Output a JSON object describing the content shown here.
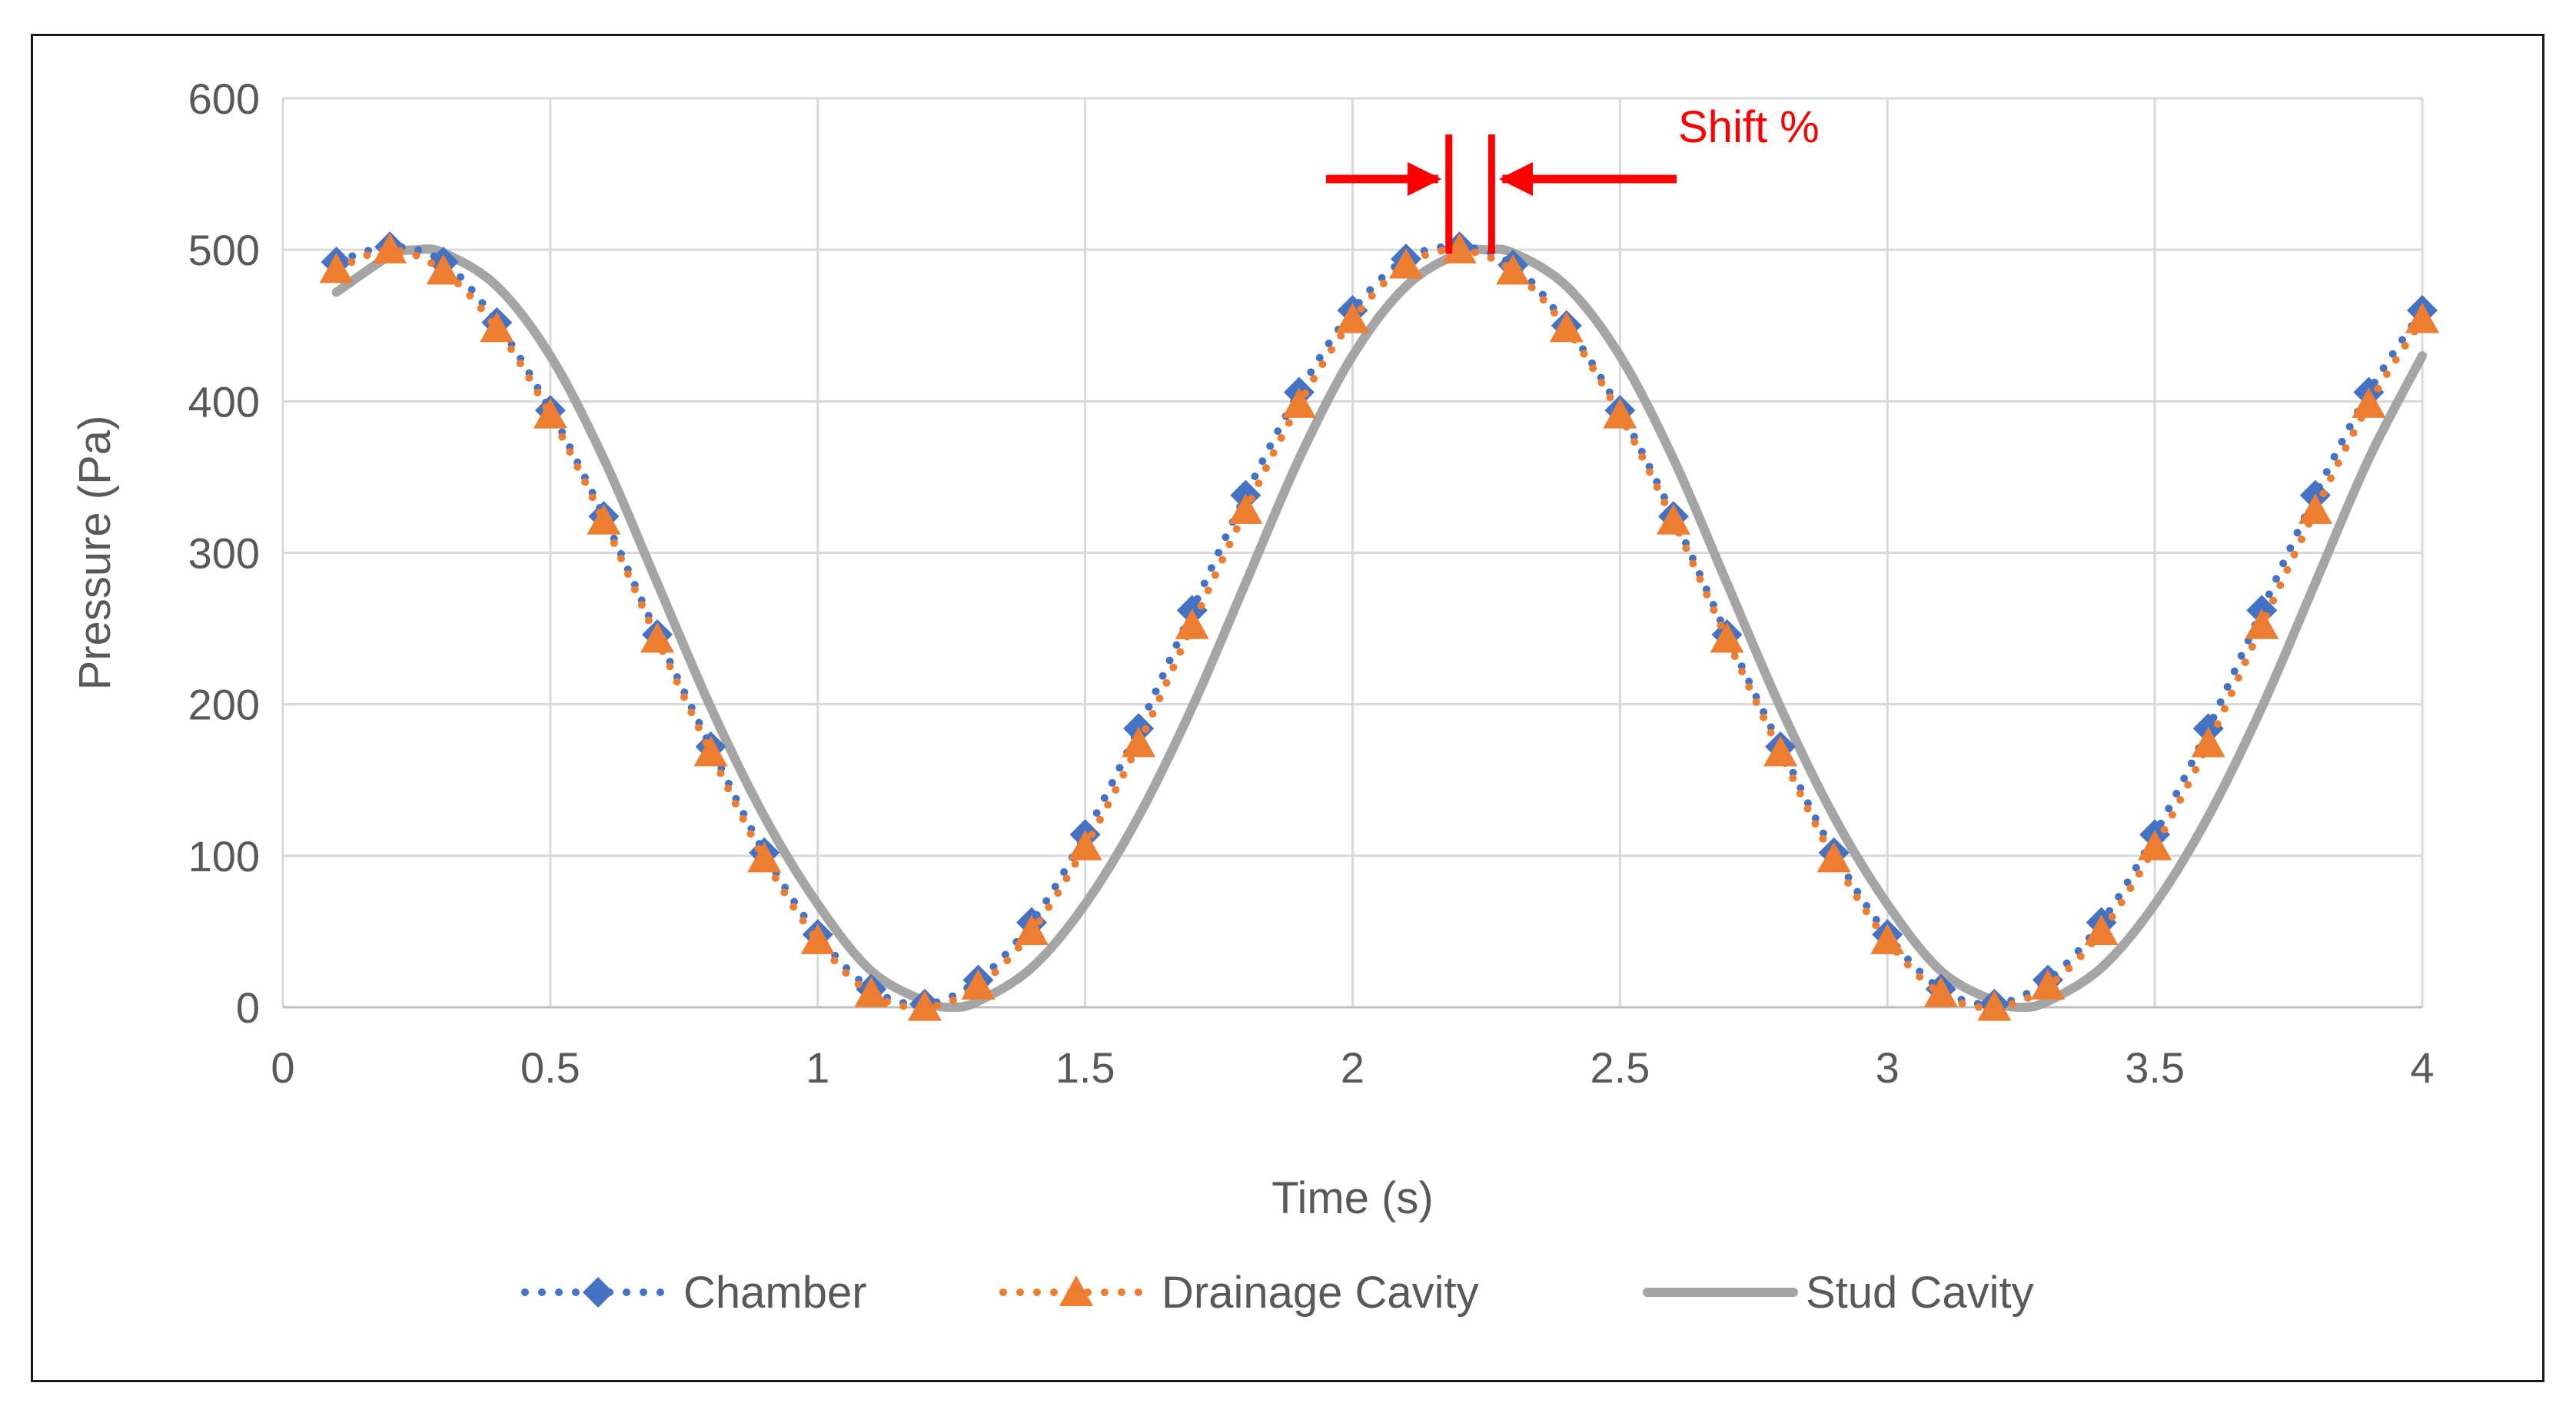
{
  "chart_data": {
    "type": "line",
    "title": "",
    "xlabel": "Time (s)",
    "ylabel": "Pressure (Pa)",
    "xlim": [
      0,
      4
    ],
    "ylim": [
      0,
      600
    ],
    "x_ticks": [
      0,
      0.5,
      1,
      1.5,
      2,
      2.5,
      3,
      3.5,
      4
    ],
    "x_tick_labels": [
      "0",
      "0.5",
      "1",
      "1.5",
      "2",
      "2.5",
      "3",
      "3.5",
      "4"
    ],
    "y_ticks": [
      0,
      100,
      200,
      300,
      400,
      500,
      600
    ],
    "y_tick_labels": [
      "0",
      "100",
      "200",
      "300",
      "400",
      "500",
      "600"
    ],
    "grid": true,
    "legend_position": "bottom",
    "series": [
      {
        "name": "Chamber",
        "color": "#4472C4",
        "line_style": "dotted",
        "marker": "diamond",
        "x": [
          0.1,
          0.2,
          0.3,
          0.4,
          0.5,
          0.6,
          0.7,
          0.8,
          0.9,
          1.0,
          1.1,
          1.2,
          1.3,
          1.4,
          1.5,
          1.6,
          1.7,
          1.8,
          1.9,
          2.0,
          2.1,
          2.2,
          2.3,
          2.4,
          2.5,
          2.6,
          2.7,
          2.8,
          2.9,
          3.0,
          3.1,
          3.2,
          3.3,
          3.4,
          3.5,
          3.6,
          3.7,
          3.8,
          3.9,
          4.0
        ],
        "values": [
          492,
          502,
          492,
          452,
          394,
          324,
          246,
          172,
          102,
          48,
          12,
          2,
          18,
          56,
          114,
          184,
          262,
          338,
          406,
          460,
          494,
          502,
          490,
          450,
          394,
          324,
          246,
          172,
          102,
          48,
          12,
          2,
          18,
          56,
          114,
          184,
          262,
          338,
          406,
          460
        ]
      },
      {
        "name": "Drainage Cavity",
        "color": "#ED7D31",
        "line_style": "dotted",
        "marker": "triangle",
        "x": [
          0.1,
          0.2,
          0.3,
          0.4,
          0.5,
          0.6,
          0.7,
          0.8,
          0.9,
          1.0,
          1.1,
          1.2,
          1.3,
          1.4,
          1.5,
          1.6,
          1.7,
          1.8,
          1.9,
          2.0,
          2.1,
          2.2,
          2.3,
          2.4,
          2.5,
          2.6,
          2.7,
          2.8,
          2.9,
          3.0,
          3.1,
          3.2,
          3.3,
          3.4,
          3.5,
          3.6,
          3.7,
          3.8,
          3.9,
          4.0
        ],
        "values": [
          487,
          500,
          486,
          448,
          391,
          321,
          243,
          168,
          98,
          44,
          9,
          0,
          14,
          50,
          106,
          174,
          252,
          328,
          398,
          454,
          490,
          500,
          486,
          448,
          391,
          321,
          243,
          168,
          98,
          44,
          9,
          0,
          14,
          50,
          106,
          174,
          252,
          328,
          398,
          454
        ]
      },
      {
        "name": "Stud Cavity",
        "color": "#A5A5A5",
        "line_style": "solid",
        "marker": "none",
        "x": [
          0.1,
          0.2,
          0.25,
          0.3,
          0.4,
          0.5,
          0.6,
          0.7,
          0.8,
          0.9,
          1.0,
          1.1,
          1.2,
          1.25,
          1.3,
          1.4,
          1.5,
          1.6,
          1.7,
          1.8,
          1.9,
          2.0,
          2.1,
          2.2,
          2.25,
          2.3,
          2.4,
          2.5,
          2.6,
          2.7,
          2.8,
          2.9,
          3.0,
          3.1,
          3.2,
          3.25,
          3.3,
          3.4,
          3.5,
          3.6,
          3.7,
          3.8,
          3.9,
          4.0
        ],
        "values": [
          472,
          496,
          500,
          498,
          476,
          430,
          362,
          280,
          198,
          126,
          68,
          24,
          4,
          0,
          4,
          26,
          68,
          126,
          198,
          280,
          362,
          430,
          476,
          498,
          500,
          498,
          476,
          430,
          362,
          280,
          198,
          126,
          68,
          24,
          4,
          0,
          4,
          26,
          68,
          126,
          198,
          280,
          362,
          430
        ]
      }
    ],
    "annotations": [
      {
        "text": "Shift %",
        "color": "#FF0000",
        "x_left": 2.18,
        "x_right": 2.26,
        "y": 530
      }
    ]
  }
}
